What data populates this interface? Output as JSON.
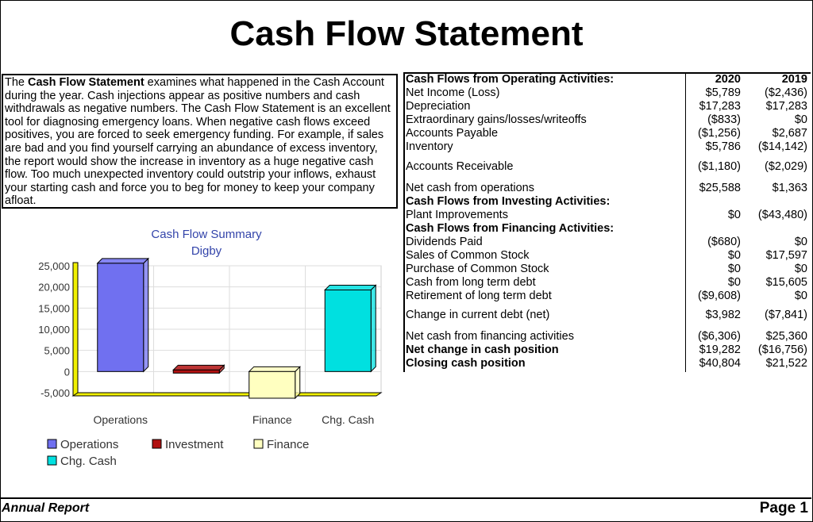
{
  "title": "Cash Flow Statement",
  "description": {
    "bold_lead": "Cash Flow Statement",
    "pre": "The ",
    "post": " examines what happened in the Cash Account during the year. Cash injections appear as positive numbers and cash withdrawals as negative numbers. The Cash Flow Statement is an excellent tool for diagnosing emergency loans. When negative cash flows exceed positives, you are forced to seek emergency funding. For example, if sales are bad and you find yourself carrying an abundance of excess inventory, the report would show the increase in inventory as a huge negative cash flow. Too much unexpected inventory could outstrip your inflows, exhaust your starting cash and force you to beg for money to keep your company afloat."
  },
  "table": {
    "columns": [
      "2020",
      "2019"
    ],
    "rows": [
      {
        "label": "Cash Flows from Operating Activities:",
        "bold": true,
        "v2020": "2020",
        "v2019": "2019",
        "header": true
      },
      {
        "label": "Net Income (Loss)",
        "v2020": "$5,789",
        "v2019": "($2,436)"
      },
      {
        "label": "Depreciation",
        "v2020": "$17,283",
        "v2019": "$17,283"
      },
      {
        "label": "Extraordinary gains/losses/writeoffs",
        "v2020": "($833)",
        "v2019": "$0"
      },
      {
        "label": "Accounts Payable",
        "v2020": "($1,256)",
        "v2019": "$2,687"
      },
      {
        "label": "Inventory",
        "v2020": "$5,786",
        "v2019": "($14,142)"
      },
      {
        "label": "Accounts Receivable",
        "v2020": "($1,180)",
        "v2019": "($2,029)"
      },
      {
        "label": "Net cash from operations",
        "v2020": "$25,588",
        "v2019": "$1,363"
      },
      {
        "label": "Cash Flows from Investing Activities:",
        "bold": true,
        "v2020": "",
        "v2019": ""
      },
      {
        "label": "Plant Improvements",
        "v2020": "$0",
        "v2019": "($43,480)"
      },
      {
        "label": "Cash Flows from Financing Activities:",
        "bold": true,
        "v2020": "",
        "v2019": ""
      },
      {
        "label": "Dividends Paid",
        "v2020": "($680)",
        "v2019": "$0"
      },
      {
        "label": "Sales of Common Stock",
        "v2020": "$0",
        "v2019": "$17,597"
      },
      {
        "label": "Purchase of Common Stock",
        "v2020": "$0",
        "v2019": "$0"
      },
      {
        "label": "Cash from long term debt",
        "v2020": "$0",
        "v2019": "$15,605"
      },
      {
        "label": "Retirement of long term debt",
        "v2020": "($9,608)",
        "v2019": "$0"
      },
      {
        "label": "Change in current debt (net)",
        "v2020": "$3,982",
        "v2019": "($7,841)"
      },
      {
        "label": "Net cash from financing activities",
        "v2020": "($6,306)",
        "v2019": "$25,360"
      },
      {
        "label": "Net change in cash position",
        "bold": true,
        "v2020": "$19,282",
        "v2019": "($16,756)"
      },
      {
        "label": "Closing cash position",
        "bold": true,
        "v2020": "$40,804",
        "v2019": "$21,522"
      }
    ]
  },
  "chart_data": {
    "type": "bar",
    "title": "Cash Flow Summary",
    "subtitle": "Digby",
    "categories": [
      "Operations",
      "Investment",
      "Finance",
      "Chg. Cash"
    ],
    "category_labels_shown": [
      "Operations",
      "Finance",
      "Chg. Cash"
    ],
    "values": [
      25588,
      0,
      -6306,
      19282
    ],
    "colors": [
      "#7070f0",
      "#b01010",
      "#ffffc0",
      "#00e0e0"
    ],
    "ylim": [
      -5000,
      25000
    ],
    "yticks": [
      "25,000",
      "20,000",
      "15,000",
      "10,000",
      "5,000",
      "0",
      "-5,000"
    ],
    "legend": {
      "placement": "bottom",
      "entries": [
        "Operations",
        "Investment",
        "Finance",
        "Chg. Cash"
      ]
    }
  },
  "footer": {
    "left": "Annual Report",
    "right": "Page 1"
  }
}
